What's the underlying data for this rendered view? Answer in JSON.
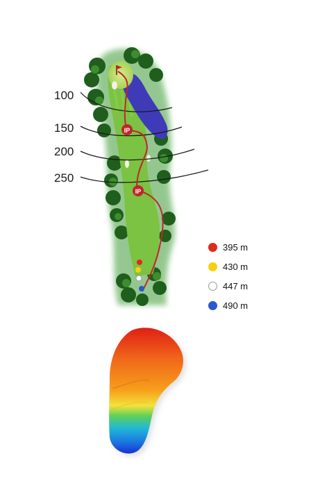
{
  "distance_markers": [
    {
      "label": "100"
    },
    {
      "label": "150"
    },
    {
      "label": "200"
    },
    {
      "label": "250"
    }
  ],
  "ip_markers": [
    {
      "label": "IP"
    },
    {
      "label": "IP"
    }
  ],
  "tees": [
    {
      "distance": "395 m",
      "color": "#e02a1b",
      "outlined": false
    },
    {
      "distance": "430 m",
      "color": "#f2d20f",
      "outlined": false
    },
    {
      "distance": "447 m",
      "color": "#ffffff",
      "outlined": true
    },
    {
      "distance": "490 m",
      "color": "#2b56d0",
      "outlined": false
    }
  ],
  "colors": {
    "fairway": "#7cc243",
    "rough": "#2f8a2a",
    "trees": "#1f5e1c",
    "water": "#3f3bb8",
    "green": "#b9dd6b",
    "route": "#c0262a"
  }
}
